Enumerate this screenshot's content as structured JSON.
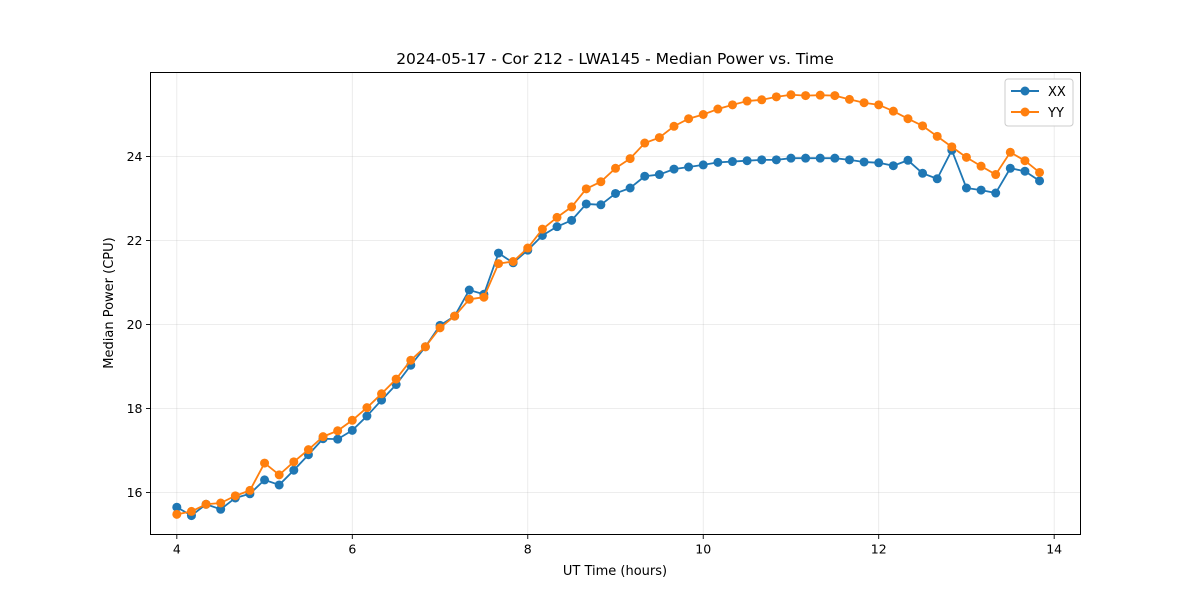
{
  "chart_data": {
    "type": "line",
    "title": "2024-05-17 - Cor 212 - LWA145 - Median Power vs. Time",
    "xlabel": "UT Time (hours)",
    "ylabel": "Median Power (CPU)",
    "xlim": [
      3.7,
      14.3
    ],
    "ylim": [
      15.0,
      26.0
    ],
    "xticks": [
      4,
      6,
      8,
      10,
      12,
      14
    ],
    "yticks": [
      16,
      18,
      20,
      22,
      24
    ],
    "xtick_labels": [
      "4",
      "6",
      "8",
      "10",
      "12",
      "14"
    ],
    "ytick_labels": [
      "16",
      "18",
      "20",
      "22",
      "24"
    ],
    "grid": true,
    "legend_position": "top-right",
    "x": [
      4.0,
      4.1667,
      4.3333,
      4.5,
      4.6667,
      4.8333,
      5.0,
      5.1667,
      5.3333,
      5.5,
      5.6667,
      5.8333,
      6.0,
      6.1667,
      6.3333,
      6.5,
      6.6667,
      6.8333,
      7.0,
      7.1667,
      7.3333,
      7.5,
      7.6667,
      7.8333,
      8.0,
      8.1667,
      8.3333,
      8.5,
      8.6667,
      8.8333,
      9.0,
      9.1667,
      9.3333,
      9.5,
      9.6667,
      9.8333,
      10.0,
      10.1667,
      10.3333,
      10.5,
      10.6667,
      10.8333,
      11.0,
      11.1667,
      11.3333,
      11.5,
      11.6667,
      11.8333,
      12.0,
      12.1667,
      12.3333,
      12.5,
      12.6667,
      12.8333,
      13.0,
      13.1667,
      13.3333,
      13.5,
      13.6667,
      13.8333
    ],
    "series": [
      {
        "name": "XX",
        "color": "#1f77b4",
        "values": [
          15.65,
          15.45,
          15.72,
          15.6,
          15.87,
          15.97,
          16.3,
          16.18,
          16.53,
          16.9,
          17.28,
          17.27,
          17.48,
          17.82,
          18.2,
          18.57,
          19.03,
          19.47,
          19.98,
          20.2,
          20.82,
          20.72,
          21.7,
          21.47,
          21.77,
          22.12,
          22.33,
          22.48,
          22.87,
          22.85,
          23.12,
          23.25,
          23.53,
          23.57,
          23.7,
          23.75,
          23.8,
          23.86,
          23.88,
          23.9,
          23.92,
          23.92,
          23.96,
          23.96,
          23.96,
          23.96,
          23.92,
          23.87,
          23.85,
          23.78,
          23.91,
          23.6,
          23.47,
          24.15,
          23.25,
          23.2,
          23.13,
          23.72,
          23.65,
          23.42
        ]
      },
      {
        "name": "YY",
        "color": "#ff7f0e",
        "values": [
          15.48,
          15.55,
          15.72,
          15.75,
          15.92,
          16.05,
          16.7,
          16.42,
          16.73,
          17.02,
          17.33,
          17.47,
          17.72,
          18.02,
          18.35,
          18.7,
          19.15,
          19.47,
          19.92,
          20.2,
          20.6,
          20.65,
          21.45,
          21.5,
          21.82,
          22.27,
          22.55,
          22.8,
          23.23,
          23.4,
          23.72,
          23.95,
          24.32,
          24.45,
          24.72,
          24.9,
          25.0,
          25.13,
          25.23,
          25.32,
          25.35,
          25.42,
          25.47,
          25.45,
          25.46,
          25.45,
          25.36,
          25.28,
          25.23,
          25.08,
          24.9,
          24.73,
          24.48,
          24.23,
          23.98,
          23.77,
          23.57,
          24.1,
          23.9,
          23.62
        ]
      }
    ]
  }
}
